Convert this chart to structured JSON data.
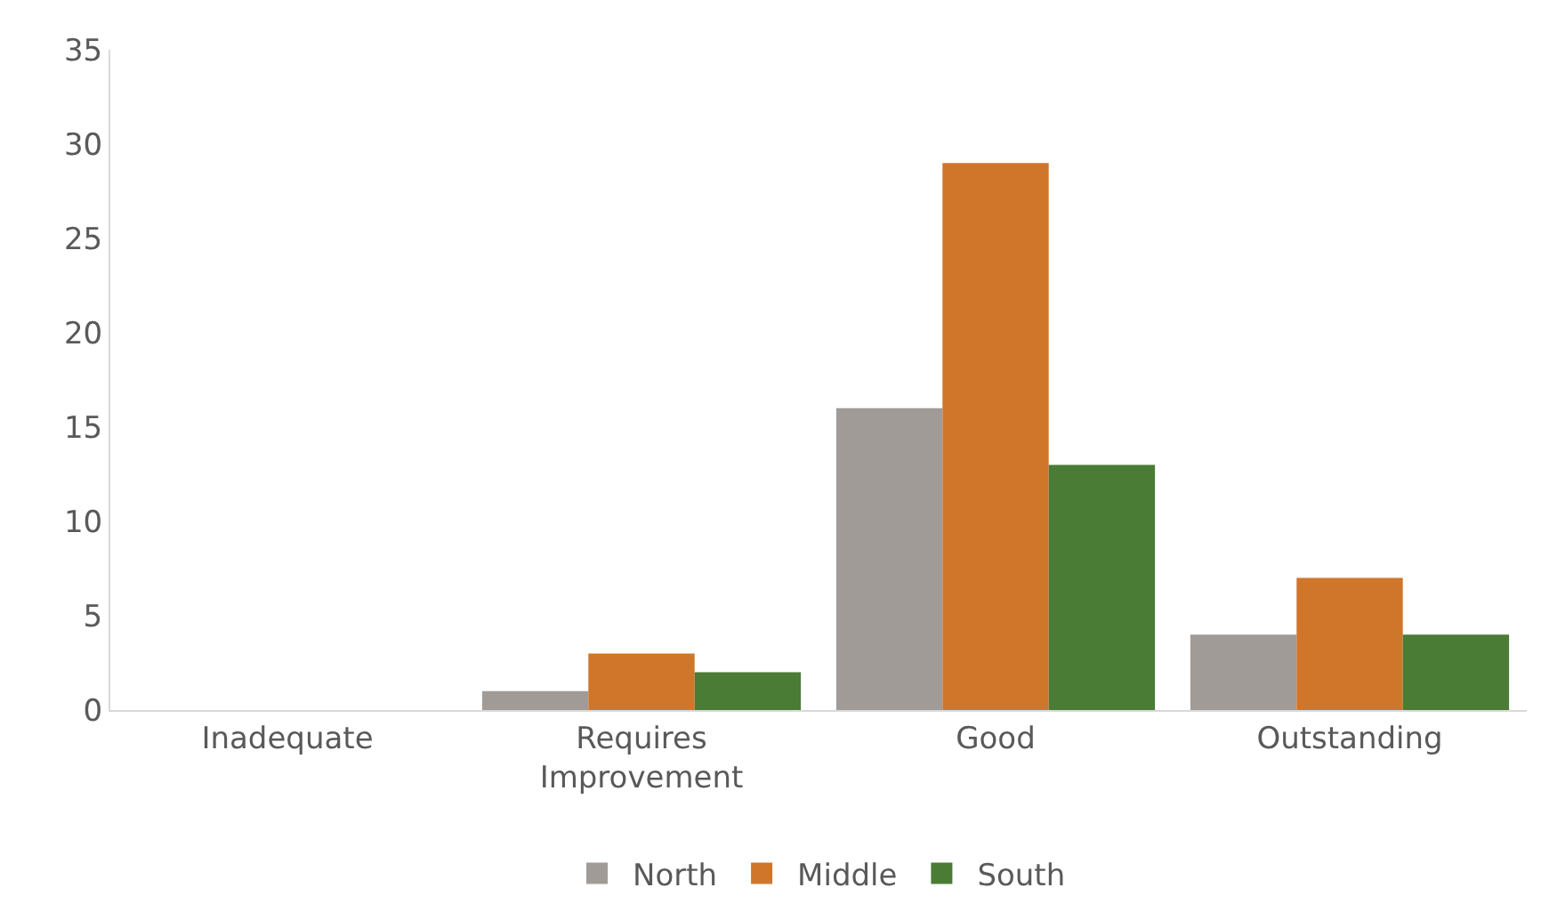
{
  "chart_data": {
    "type": "bar",
    "categories": [
      "Inadequate",
      "Requires Improvement",
      "Good",
      "Outstanding"
    ],
    "series": [
      {
        "name": "North",
        "color": "#a09b97",
        "values": [
          0,
          1,
          16,
          4
        ]
      },
      {
        "name": "Middle",
        "color": "#d0762b",
        "values": [
          0,
          3,
          29,
          7
        ]
      },
      {
        "name": "South",
        "color": "#4a7c35",
        "values": [
          0,
          2,
          13,
          4
        ]
      }
    ],
    "ylim": [
      0,
      35
    ],
    "yticks": [
      0,
      5,
      10,
      15,
      20,
      25,
      30,
      35
    ],
    "grid": false,
    "legend": "bottom"
  }
}
